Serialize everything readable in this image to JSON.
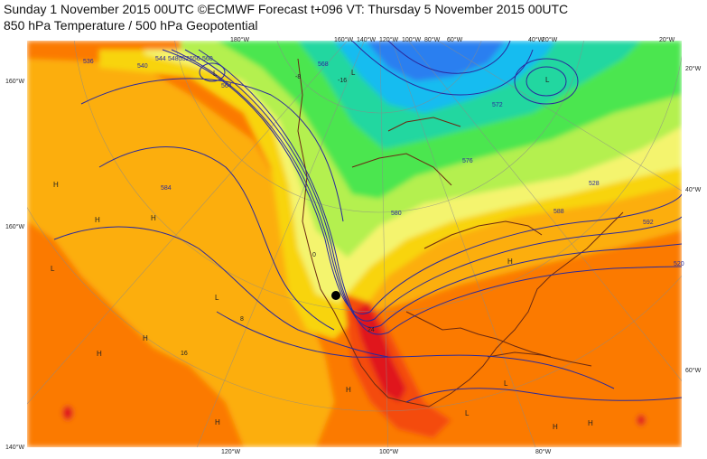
{
  "header": {
    "line1": "Sunday 1 November 2015 00UTC ©ECMWF Forecast t+096 VT: Thursday 5 November 2015 00UTC",
    "line2": "850 hPa Temperature / 500 hPa Geopotential"
  },
  "axis_labels": {
    "top": [
      "180°W",
      "160°W",
      "140°W",
      "120°W",
      "100°W",
      "80°W",
      "60°W",
      "40°W",
      "20°W",
      "20°W"
    ],
    "left": [
      "160°W",
      "160°W",
      "140°W"
    ],
    "right": [
      "20°W",
      "40°W",
      "60°W"
    ],
    "bottom": [
      "120°W",
      "100°W",
      "80°W"
    ]
  },
  "contour_labels": {
    "geopotential": [
      "536",
      "540",
      "544",
      "548",
      "552",
      "556",
      "560",
      "564",
      "568",
      "572",
      "576",
      "580",
      "584",
      "588",
      "592",
      "520",
      "528"
    ],
    "temperature": [
      "-16",
      "-8",
      "0",
      "8",
      "16",
      "24"
    ]
  },
  "pressure_centers": [
    "H",
    "L"
  ],
  "colors": {
    "deep_red": "#e0141e",
    "red_orange": "#f44b0c",
    "orange": "#fb7a06",
    "orange_yellow": "#fcae08",
    "yellow": "#f8d40c",
    "light_yellow": "#f4f46e",
    "light_green": "#b4f050",
    "green": "#4ce650",
    "teal": "#20d7a0",
    "cyan": "#12bcf0",
    "blue": "#2a7ff0",
    "geopotential_line": "#2a2a9c",
    "coastline": "#6b2a12"
  }
}
